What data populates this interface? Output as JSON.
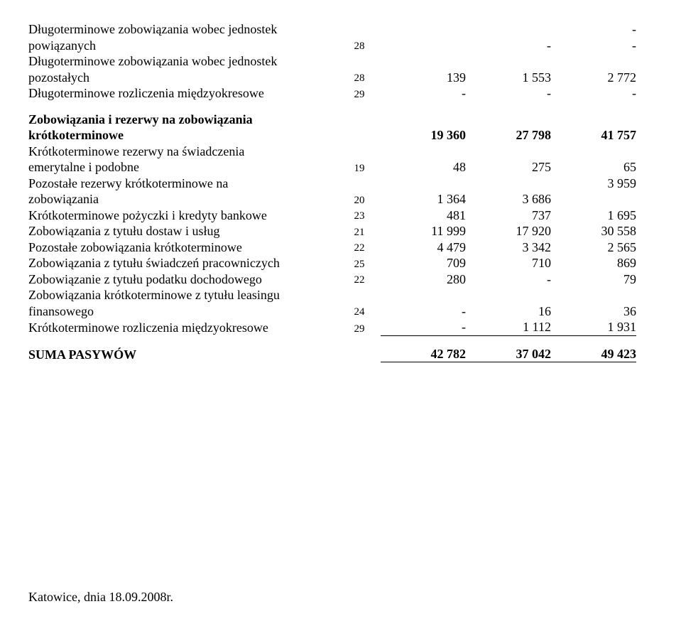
{
  "rows": [
    {
      "label_lines": [
        "Długoterminowe zobowiązania wobec jednostek",
        "powiązanych"
      ],
      "note": "28",
      "c1": "",
      "c2": "-",
      "c3": "-",
      "extra_top_c3": "-"
    },
    {
      "label_lines": [
        "Długoterminowe zobowiązania wobec jednostek",
        "pozostałych"
      ],
      "note": "28",
      "c1": "139",
      "c2": "1 553",
      "c3": "2 772"
    },
    {
      "label_lines": [
        "Długoterminowe rozliczenia międzyokresowe"
      ],
      "note": "29",
      "c1": "-",
      "c2": "-",
      "c3": "-"
    },
    {
      "spacer": true
    },
    {
      "label_lines": [
        "Zobowiązania i rezerwy na zobowiązania",
        "krótkoterminowe"
      ],
      "note": "",
      "c1": "19 360",
      "c2": "27 798",
      "c3": "41 757",
      "bold": true
    },
    {
      "label_lines": [
        "Krótkoterminowe rezerwy na świadczenia",
        "emerytalne i podobne"
      ],
      "note": "19",
      "c1": "48",
      "c2": "275",
      "c3": "65"
    },
    {
      "label_lines": [
        "Pozostałe rezerwy krótkoterminowe na",
        "zobowiązania"
      ],
      "note": "20",
      "c1": "1 364",
      "c2": "3 686",
      "c3": "3 959",
      "c3_top": true
    },
    {
      "label_lines": [
        "Krótkoterminowe pożyczki i kredyty bankowe"
      ],
      "note": "23",
      "c1": "481",
      "c2": "737",
      "c3": "1 695"
    },
    {
      "label_lines": [
        "Zobowiązania z tytułu dostaw i usług"
      ],
      "note": "21",
      "c1": "11 999",
      "c2": "17 920",
      "c3": "30 558"
    },
    {
      "label_lines": [
        "Pozostałe zobowiązania krótkoterminowe"
      ],
      "note": "22",
      "c1": "4 479",
      "c2": "3 342",
      "c3": "2 565"
    },
    {
      "label_lines": [
        "Zobowiązania z tytułu świadczeń pracowniczych"
      ],
      "note": "25",
      "c1": "709",
      "c2": "710",
      "c3": "869"
    },
    {
      "label_lines": [
        "Zobowiązanie z tytułu podatku dochodowego"
      ],
      "note": "22",
      "c1": "280",
      "c2": "-",
      "c3": "79"
    },
    {
      "label_lines": [
        "Zobowiązania krótkoterminowe z tytułu leasingu",
        "finansowego"
      ],
      "note": "24",
      "c1": "-",
      "c2": "16",
      "c3": "36"
    },
    {
      "label_lines": [
        "Krótkoterminowe rozliczenia międzyokresowe"
      ],
      "note": "29",
      "c1": "-",
      "c2": "1 112",
      "c3": "1 931",
      "underline": true
    },
    {
      "spacer": true
    },
    {
      "label_lines": [
        "SUMA PASYWÓW"
      ],
      "note": "",
      "c1": "42 782",
      "c2": "37 042",
      "c3": "49 423",
      "bold": true,
      "underline": true
    }
  ],
  "footer": "Katowice, dnia 18.09.2008r."
}
